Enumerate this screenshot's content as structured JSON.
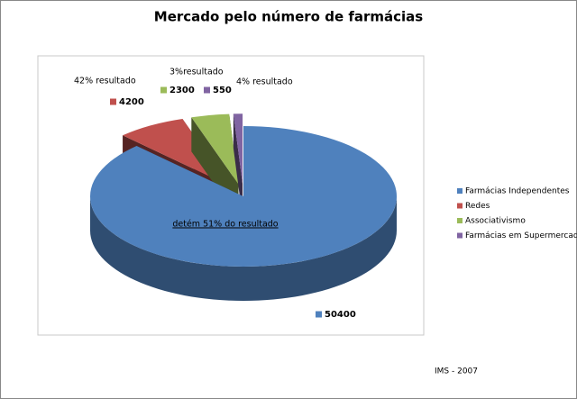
{
  "chart_data": {
    "type": "pie",
    "title": "Mercado pelo número de farmácias",
    "categories": [
      "Farmácias Independentes",
      "Redes",
      "Associativismo",
      "Farmácias em Supermercados"
    ],
    "values": [
      50400,
      4200,
      2300,
      550
    ],
    "colors": [
      "#4f81bd",
      "#c0504d",
      "#9bbb59",
      "#8064a2"
    ],
    "annotations": [
      "detém 51% do resultado",
      "42% resultado",
      "3%resultado",
      "4% resultado"
    ],
    "source": "IMS - 2007"
  }
}
